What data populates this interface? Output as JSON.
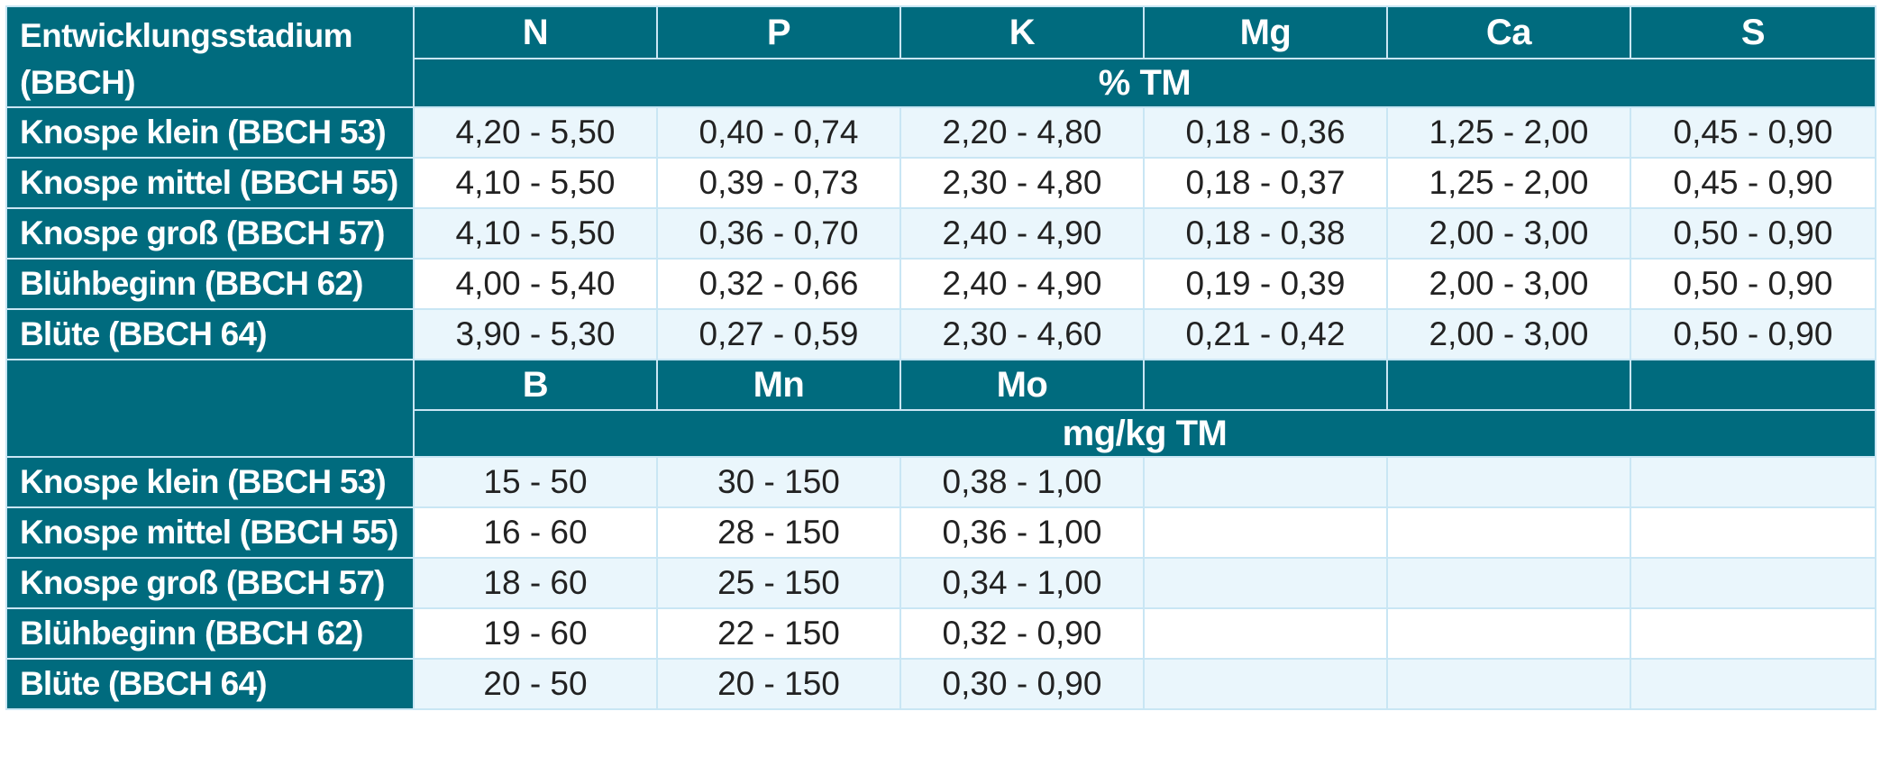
{
  "corner_label": "Entwicklungsstadium (BBCH)",
  "section1": {
    "nutrients": [
      "N",
      "P",
      "K",
      "Mg",
      "Ca",
      "S"
    ],
    "unit": "% TM",
    "rows": [
      {
        "stage": "Knospe klein (BBCH 53)",
        "values": [
          "4,20 - 5,50",
          "0,40 - 0,74",
          "2,20 - 4,80",
          "0,18 - 0,36",
          "1,25 - 2,00",
          "0,45 - 0,90"
        ]
      },
      {
        "stage": "Knospe mittel (BBCH 55)",
        "values": [
          "4,10 - 5,50",
          "0,39 - 0,73",
          "2,30 - 4,80",
          "0,18 - 0,37",
          "1,25 - 2,00",
          "0,45 - 0,90"
        ]
      },
      {
        "stage": "Knospe groß (BBCH 57)",
        "values": [
          "4,10 - 5,50",
          "0,36 - 0,70",
          "2,40 - 4,90",
          "0,18 - 0,38",
          "2,00 - 3,00",
          "0,50 - 0,90"
        ]
      },
      {
        "stage": "Blühbeginn (BBCH 62)",
        "values": [
          "4,00 - 5,40",
          "0,32 - 0,66",
          "2,40 - 4,90",
          "0,19 - 0,39",
          "2,00 - 3,00",
          "0,50 - 0,90"
        ]
      },
      {
        "stage": "Blüte (BBCH 64)",
        "values": [
          "3,90 - 5,30",
          "0,27 - 0,59",
          "2,30 - 4,60",
          "0,21 - 0,42",
          "2,00 - 3,00",
          "0,50 - 0,90"
        ]
      }
    ]
  },
  "section2": {
    "nutrients": [
      "B",
      "Mn",
      "Mo",
      "",
      "",
      ""
    ],
    "unit": "mg/kg TM",
    "rows": [
      {
        "stage": "Knospe klein (BBCH 53)",
        "values": [
          "15 - 50",
          "30 - 150",
          "0,38 - 1,00",
          "",
          "",
          ""
        ]
      },
      {
        "stage": "Knospe mittel (BBCH 55)",
        "values": [
          "16 - 60",
          "28 - 150",
          "0,36 - 1,00",
          "",
          "",
          ""
        ]
      },
      {
        "stage": "Knospe groß (BBCH 57)",
        "values": [
          "18 - 60",
          "25 - 150",
          "0,34 - 1,00",
          "",
          "",
          ""
        ]
      },
      {
        "stage": "Blühbeginn (BBCH 62)",
        "values": [
          "19 - 60",
          "22 - 150",
          "0,32 - 0,90",
          "",
          "",
          ""
        ]
      },
      {
        "stage": "Blüte (BBCH 64)",
        "values": [
          "20 - 50",
          "20 - 150",
          "0,30 - 0,90",
          "",
          "",
          ""
        ]
      }
    ]
  },
  "colors": {
    "header_bg": "#006b7e",
    "row_odd_bg": "#eaf6fc",
    "row_even_bg": "#ffffff",
    "grid_line": "#c9e6f4"
  }
}
